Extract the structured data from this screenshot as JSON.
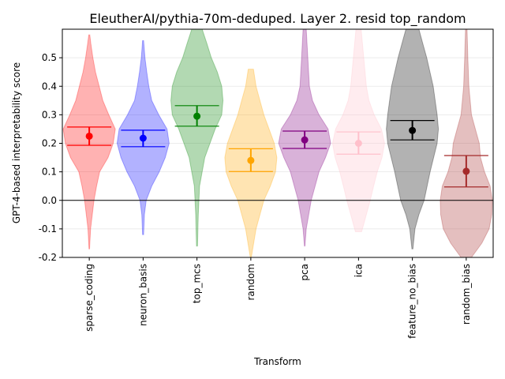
{
  "chart_data": {
    "type": "violin",
    "title": "EleutherAI/pythia-70m-deduped. Layer 2. resid top_random",
    "xlabel": "Transform",
    "ylabel": "GPT-4-based interpretability score",
    "ylim": [
      -0.2,
      0.6
    ],
    "yticks": [
      "-0.2",
      "-0.1",
      "0.0",
      "0.1",
      "0.2",
      "0.3",
      "0.4",
      "0.5"
    ],
    "ytick_values": [
      -0.2,
      -0.1,
      0.0,
      0.1,
      0.2,
      0.3,
      0.4,
      0.5
    ],
    "reference_line_y": 0.0,
    "grid": "horizontal",
    "categories": [
      "sparse_coding",
      "neuron_basis",
      "top_mcs",
      "random",
      "pca",
      "ica",
      "feature_no_bias",
      "random_bias"
    ],
    "series": [
      {
        "category": "sparse_coding",
        "color": "#ff0000",
        "mean": 0.225,
        "ci": [
          0.193,
          0.257
        ],
        "min": -0.17,
        "max": 0.58,
        "density": [
          [
            -0.17,
            0.01
          ],
          [
            -0.1,
            0.05
          ],
          [
            0.0,
            0.18
          ],
          [
            0.05,
            0.28
          ],
          [
            0.1,
            0.4
          ],
          [
            0.15,
            0.72
          ],
          [
            0.2,
            0.92
          ],
          [
            0.25,
            1.0
          ],
          [
            0.3,
            0.75
          ],
          [
            0.35,
            0.52
          ],
          [
            0.4,
            0.38
          ],
          [
            0.45,
            0.24
          ],
          [
            0.5,
            0.14
          ],
          [
            0.55,
            0.06
          ],
          [
            0.58,
            0.02
          ]
        ]
      },
      {
        "category": "neuron_basis",
        "color": "#0000ff",
        "mean": 0.218,
        "ci": [
          0.188,
          0.246
        ],
        "min": -0.12,
        "max": 0.56,
        "density": [
          [
            -0.12,
            0.02
          ],
          [
            -0.05,
            0.05
          ],
          [
            0.0,
            0.12
          ],
          [
            0.05,
            0.33
          ],
          [
            0.1,
            0.62
          ],
          [
            0.15,
            0.85
          ],
          [
            0.2,
            1.0
          ],
          [
            0.25,
            0.92
          ],
          [
            0.3,
            0.6
          ],
          [
            0.35,
            0.33
          ],
          [
            0.4,
            0.22
          ],
          [
            0.45,
            0.14
          ],
          [
            0.5,
            0.07
          ],
          [
            0.56,
            0.02
          ]
        ]
      },
      {
        "category": "top_mcs",
        "color": "#008000",
        "mean": 0.295,
        "ci": [
          0.26,
          0.332
        ],
        "min": -0.16,
        "max": 0.6,
        "density": [
          [
            -0.16,
            0.02
          ],
          [
            -0.05,
            0.05
          ],
          [
            0.05,
            0.1
          ],
          [
            0.15,
            0.3
          ],
          [
            0.25,
            0.7
          ],
          [
            0.3,
            0.95
          ],
          [
            0.35,
            1.0
          ],
          [
            0.4,
            0.95
          ],
          [
            0.45,
            0.78
          ],
          [
            0.5,
            0.55
          ],
          [
            0.55,
            0.38
          ],
          [
            0.6,
            0.2
          ]
        ]
      },
      {
        "category": "random",
        "color": "#ffa500",
        "mean": 0.14,
        "ci": [
          0.101,
          0.181
        ],
        "min": -0.2,
        "max": 0.46,
        "density": [
          [
            -0.2,
            0.02
          ],
          [
            -0.1,
            0.2
          ],
          [
            0.0,
            0.5
          ],
          [
            0.05,
            0.75
          ],
          [
            0.1,
            0.95
          ],
          [
            0.15,
            1.0
          ],
          [
            0.2,
            0.9
          ],
          [
            0.25,
            0.7
          ],
          [
            0.3,
            0.5
          ],
          [
            0.35,
            0.35
          ],
          [
            0.4,
            0.2
          ],
          [
            0.46,
            0.1
          ]
        ]
      },
      {
        "category": "pca",
        "color": "#800080",
        "mean": 0.212,
        "ci": [
          0.182,
          0.243
        ],
        "min": -0.16,
        "max": 0.6,
        "density": [
          [
            -0.16,
            0.01
          ],
          [
            -0.1,
            0.06
          ],
          [
            0.0,
            0.25
          ],
          [
            0.1,
            0.55
          ],
          [
            0.15,
            0.8
          ],
          [
            0.2,
            1.0
          ],
          [
            0.25,
            0.9
          ],
          [
            0.3,
            0.55
          ],
          [
            0.35,
            0.3
          ],
          [
            0.4,
            0.18
          ],
          [
            0.5,
            0.12
          ],
          [
            0.6,
            0.06
          ]
        ]
      },
      {
        "category": "ica",
        "color": "#ffc0cb",
        "mean": 0.2,
        "ci": [
          0.162,
          0.24
        ],
        "min": -0.11,
        "max": 0.6,
        "density": [
          [
            -0.11,
            0.12
          ],
          [
            -0.05,
            0.3
          ],
          [
            0.0,
            0.45
          ],
          [
            0.05,
            0.58
          ],
          [
            0.1,
            0.72
          ],
          [
            0.15,
            0.9
          ],
          [
            0.2,
            1.0
          ],
          [
            0.25,
            0.88
          ],
          [
            0.3,
            0.6
          ],
          [
            0.35,
            0.4
          ],
          [
            0.4,
            0.3
          ],
          [
            0.5,
            0.2
          ],
          [
            0.6,
            0.1
          ]
        ]
      },
      {
        "category": "feature_no_bias",
        "color": "#000000",
        "mean": 0.245,
        "ci": [
          0.212,
          0.28
        ],
        "min": -0.17,
        "max": 0.6,
        "density": [
          [
            -0.17,
            0.02
          ],
          [
            -0.1,
            0.1
          ],
          [
            -0.05,
            0.25
          ],
          [
            0.0,
            0.45
          ],
          [
            0.1,
            0.68
          ],
          [
            0.2,
            0.95
          ],
          [
            0.25,
            1.0
          ],
          [
            0.3,
            0.95
          ],
          [
            0.4,
            0.8
          ],
          [
            0.5,
            0.55
          ],
          [
            0.55,
            0.4
          ],
          [
            0.6,
            0.25
          ]
        ]
      },
      {
        "category": "random_bias",
        "color": "#a52a2a",
        "mean": 0.102,
        "ci": [
          0.047,
          0.157
        ],
        "min": -0.2,
        "max": 0.6,
        "density": [
          [
            -0.2,
            0.2
          ],
          [
            -0.15,
            0.6
          ],
          [
            -0.1,
            0.88
          ],
          [
            -0.05,
            0.98
          ],
          [
            0.0,
            1.0
          ],
          [
            0.05,
            0.92
          ],
          [
            0.1,
            0.7
          ],
          [
            0.15,
            0.55
          ],
          [
            0.2,
            0.5
          ],
          [
            0.25,
            0.35
          ],
          [
            0.3,
            0.2
          ],
          [
            0.4,
            0.1
          ],
          [
            0.5,
            0.06
          ],
          [
            0.6,
            0.03
          ]
        ]
      }
    ]
  }
}
